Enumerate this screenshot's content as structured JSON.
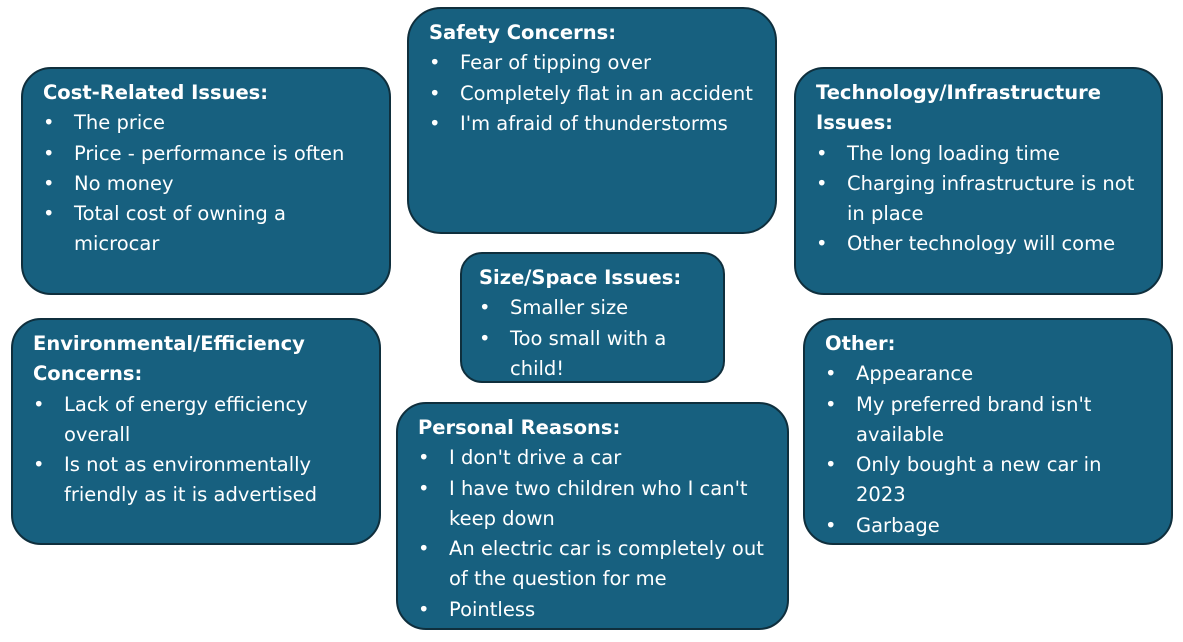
{
  "groups": {
    "safety": {
      "title": "Safety Concerns:",
      "items": [
        "Fear of tipping over",
        "Completely flat in an accident",
        "I'm afraid of thunderstorms"
      ]
    },
    "cost": {
      "title": "Cost-Related Issues:",
      "items": [
        "The price",
        "Price - performance is often",
        "No money",
        "Total cost of owning a microcar"
      ]
    },
    "tech": {
      "title": "Technology/Infrastructure Issues:",
      "items": [
        "The long loading time",
        "Charging infrastructure is not in place",
        "Other technology will come"
      ]
    },
    "size": {
      "title": "Size/Space Issues:",
      "items": [
        "Smaller size",
        "Too small with a child!"
      ]
    },
    "env": {
      "title": "Environmental/Efficiency Concerns:",
      "items": [
        "Lack of energy efficiency overall",
        "Is not as environmentally friendly as it is advertised"
      ]
    },
    "other": {
      "title": "Other:",
      "items": [
        "Appearance",
        "My preferred brand isn't available",
        "Only bought a new car in 2023",
        "Garbage"
      ]
    },
    "personal": {
      "title": "Personal Reasons:",
      "items": [
        "I don't drive a car",
        "I have two children who I can't keep down",
        "An electric car is completely out of the question for me",
        "Pointless"
      ]
    }
  },
  "colors": {
    "box_fill": "#17607f",
    "box_border": "#0f2f3d",
    "text": "#ffffff"
  }
}
